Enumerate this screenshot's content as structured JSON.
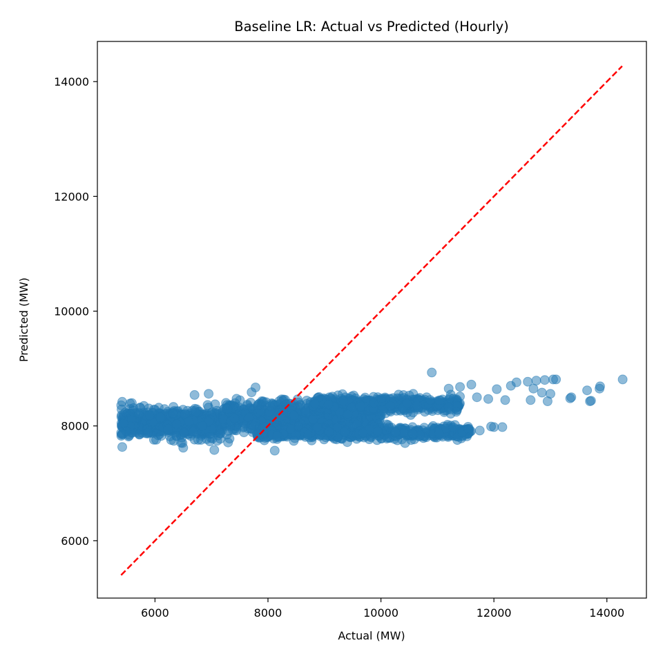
{
  "chart_data": {
    "type": "scatter",
    "title": "Baseline LR: Actual vs Predicted (Hourly)",
    "xlabel": "Actual (MW)",
    "ylabel": "Predicted (MW)",
    "xlim": [
      4980,
      14700
    ],
    "ylim": [
      5000,
      14700
    ],
    "xticks": [
      6000,
      8000,
      10000,
      12000,
      14000
    ],
    "yticks": [
      6000,
      8000,
      10000,
      12000,
      14000
    ],
    "grid": false,
    "marker_color": "#1f77b4",
    "marker_alpha": 0.5,
    "reference_line": {
      "style": "dashed",
      "color": "#ff0000",
      "points": [
        [
          5400,
          5400
        ],
        [
          14270,
          14270
        ]
      ]
    },
    "series": [
      {
        "clusters": [
          {
            "x_range": [
              5400,
              7200
            ],
            "y_center": 8040,
            "y_spread": 260,
            "count": 700
          },
          {
            "x_range": [
              7200,
              10000
            ],
            "y_center": 8160,
            "y_spread": 300,
            "count": 900
          },
          {
            "x_range": [
              7800,
              11600
            ],
            "y_center": 7880,
            "y_spread": 120,
            "count": 650
          },
          {
            "x_range": [
              8800,
              11400
            ],
            "y_center": 8380,
            "y_spread": 140,
            "count": 550
          }
        ],
        "points": [
          {
            "x": 5420,
            "y": 8420
          },
          {
            "x": 5560,
            "y": 8390
          },
          {
            "x": 5400,
            "y": 7880
          },
          {
            "x": 6950,
            "y": 8560
          },
          {
            "x": 7780,
            "y": 8670
          },
          {
            "x": 6700,
            "y": 8540
          },
          {
            "x": 10900,
            "y": 8930
          },
          {
            "x": 11600,
            "y": 8720
          },
          {
            "x": 11400,
            "y": 8680
          },
          {
            "x": 11200,
            "y": 8650
          },
          {
            "x": 11700,
            "y": 8500
          },
          {
            "x": 11900,
            "y": 8470
          },
          {
            "x": 12050,
            "y": 8640
          },
          {
            "x": 12200,
            "y": 8450
          },
          {
            "x": 12300,
            "y": 8700
          },
          {
            "x": 12400,
            "y": 8760
          },
          {
            "x": 12600,
            "y": 8770
          },
          {
            "x": 12650,
            "y": 8450
          },
          {
            "x": 12700,
            "y": 8650
          },
          {
            "x": 12750,
            "y": 8790
          },
          {
            "x": 12850,
            "y": 8580
          },
          {
            "x": 12900,
            "y": 8800
          },
          {
            "x": 12950,
            "y": 8430
          },
          {
            "x": 13000,
            "y": 8560
          },
          {
            "x": 13050,
            "y": 8810
          },
          {
            "x": 13100,
            "y": 8810
          },
          {
            "x": 13350,
            "y": 8480
          },
          {
            "x": 13370,
            "y": 8500
          },
          {
            "x": 13650,
            "y": 8620
          },
          {
            "x": 13700,
            "y": 8430
          },
          {
            "x": 13720,
            "y": 8440
          },
          {
            "x": 13870,
            "y": 8650
          },
          {
            "x": 13880,
            "y": 8690
          },
          {
            "x": 14280,
            "y": 8810
          },
          {
            "x": 11550,
            "y": 7950
          },
          {
            "x": 11750,
            "y": 7920
          },
          {
            "x": 12000,
            "y": 7980
          },
          {
            "x": 12150,
            "y": 7980
          },
          {
            "x": 11950,
            "y": 7990
          },
          {
            "x": 8120,
            "y": 7570
          },
          {
            "x": 7050,
            "y": 7580
          },
          {
            "x": 6500,
            "y": 7620
          }
        ]
      }
    ]
  }
}
